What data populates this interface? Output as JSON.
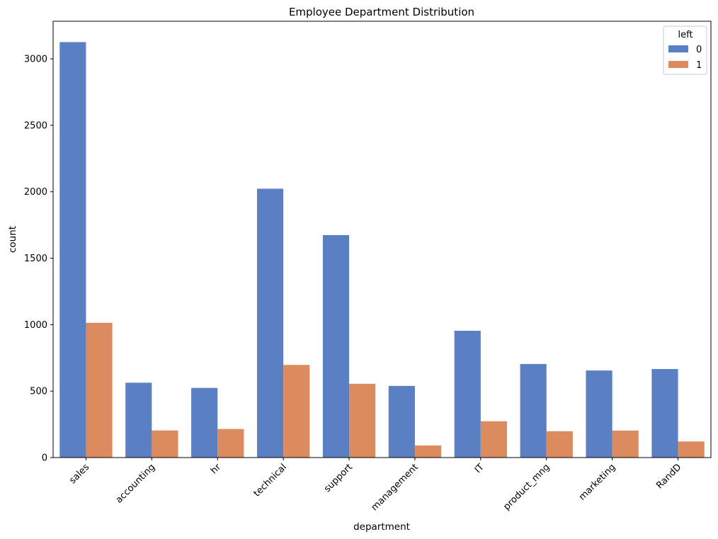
{
  "chart_data": {
    "type": "bar",
    "title": "Employee Department Distribution",
    "xlabel": "department",
    "ylabel": "count",
    "categories": [
      "sales",
      "accounting",
      "hr",
      "technical",
      "support",
      "management",
      "IT",
      "product_mng",
      "marketing",
      "RandD"
    ],
    "series": [
      {
        "name": "0",
        "color": "#5a7fc3",
        "values": [
          3126,
          563,
          524,
          2023,
          1674,
          539,
          954,
          704,
          655,
          666
        ]
      },
      {
        "name": "1",
        "color": "#dc8b5e",
        "values": [
          1014,
          204,
          215,
          697,
          555,
          91,
          273,
          198,
          203,
          121
        ]
      }
    ],
    "ylim": [
      0,
      3283
    ],
    "yticks": [
      0,
      500,
      1000,
      1500,
      2000,
      2500,
      3000
    ],
    "legend": {
      "title": "left",
      "placement": "top-right"
    },
    "grid": false
  }
}
